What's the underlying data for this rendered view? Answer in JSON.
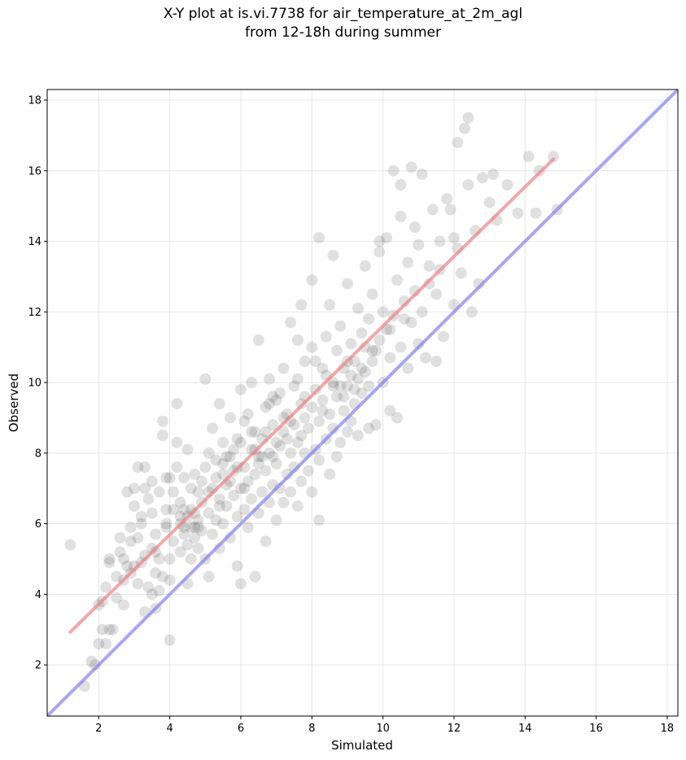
{
  "chart_data": {
    "type": "scatter",
    "title_lines": [
      "X-Y plot at is.vi.7738 for air_temperature_at_2m_agl",
      "from 12-18h during summer"
    ],
    "xlabel": "Simulated",
    "ylabel": "Observed",
    "xlim": [
      0.55,
      18.3
    ],
    "ylim": [
      0.55,
      18.3
    ],
    "xticks": [
      2,
      4,
      6,
      8,
      10,
      12,
      14,
      16,
      18
    ],
    "yticks": [
      2,
      4,
      6,
      8,
      10,
      12,
      14,
      16,
      18
    ],
    "grid": true,
    "point_color": "#555555",
    "point_opacity": 0.18,
    "series": [
      {
        "kind": "fit-line",
        "color": "#f08080",
        "x": [
          1.2,
          14.8
        ],
        "y": [
          2.93,
          16.33
        ]
      },
      {
        "kind": "identity-line",
        "color": "#8080f0",
        "x": [
          0.55,
          18.3
        ],
        "y": [
          0.55,
          18.3
        ]
      }
    ],
    "points": [
      [
        1.2,
        5.4
      ],
      [
        1.6,
        1.4
      ],
      [
        1.8,
        2.1
      ],
      [
        1.9,
        2.0
      ],
      [
        2.0,
        2.6
      ],
      [
        2.0,
        3.7
      ],
      [
        2.1,
        3.8
      ],
      [
        2.1,
        3.0
      ],
      [
        2.2,
        2.6
      ],
      [
        2.2,
        4.2
      ],
      [
        2.3,
        3.0
      ],
      [
        2.3,
        4.9
      ],
      [
        2.4,
        3.0
      ],
      [
        2.3,
        5.0
      ],
      [
        2.5,
        3.9
      ],
      [
        2.6,
        5.2
      ],
      [
        2.6,
        5.6
      ],
      [
        2.7,
        4.4
      ],
      [
        2.7,
        3.7
      ],
      [
        2.7,
        5.0
      ],
      [
        2.8,
        4.8
      ],
      [
        2.8,
        6.9
      ],
      [
        2.9,
        4.6
      ],
      [
        2.9,
        5.9
      ],
      [
        3.0,
        7.0
      ],
      [
        3.0,
        6.5
      ],
      [
        3.1,
        4.3
      ],
      [
        3.1,
        5.6
      ],
      [
        3.1,
        7.6
      ],
      [
        3.2,
        4.9
      ],
      [
        3.2,
        6.2
      ],
      [
        3.3,
        5.1
      ],
      [
        3.3,
        7.6
      ],
      [
        3.3,
        3.5
      ],
      [
        3.4,
        4.2
      ],
      [
        3.4,
        6.7
      ],
      [
        3.5,
        4.0
      ],
      [
        3.5,
        5.3
      ],
      [
        3.5,
        6.3
      ],
      [
        3.5,
        7.2
      ],
      [
        3.6,
        3.6
      ],
      [
        3.6,
        4.6
      ],
      [
        3.6,
        5.7
      ],
      [
        3.7,
        4.1
      ],
      [
        3.7,
        5.0
      ],
      [
        3.7,
        6.9
      ],
      [
        3.8,
        4.5
      ],
      [
        3.8,
        8.9
      ],
      [
        3.8,
        8.5
      ],
      [
        3.9,
        5.9
      ],
      [
        3.9,
        6.4
      ],
      [
        3.9,
        7.3
      ],
      [
        4.0,
        4.4
      ],
      [
        4.0,
        2.7
      ],
      [
        4.0,
        5.0
      ],
      [
        4.1,
        5.5
      ],
      [
        4.1,
        6.9
      ],
      [
        4.2,
        8.3
      ],
      [
        4.2,
        9.4
      ],
      [
        4.2,
        7.6
      ],
      [
        4.3,
        5.2
      ],
      [
        4.3,
        6.0
      ],
      [
        4.3,
        6.6
      ],
      [
        4.4,
        5.7
      ],
      [
        4.4,
        7.3
      ],
      [
        4.5,
        4.3
      ],
      [
        4.5,
        6.2
      ],
      [
        4.5,
        8.1
      ],
      [
        4.6,
        5.0
      ],
      [
        4.6,
        6.4
      ],
      [
        4.6,
        7.0
      ],
      [
        4.7,
        5.6
      ],
      [
        4.7,
        5.9
      ],
      [
        4.7,
        7.4
      ],
      [
        4.8,
        5.3
      ],
      [
        4.8,
        6.1
      ],
      [
        4.8,
        6.9
      ],
      [
        4.9,
        5.8
      ],
      [
        4.9,
        6.6
      ],
      [
        5.0,
        5.0
      ],
      [
        5.0,
        7.6
      ],
      [
        5.0,
        10.1
      ],
      [
        5.1,
        4.5
      ],
      [
        5.1,
        6.3
      ],
      [
        5.1,
        8.0
      ],
      [
        5.2,
        5.7
      ],
      [
        5.2,
        7.0
      ],
      [
        5.2,
        8.7
      ],
      [
        5.3,
        6.1
      ],
      [
        5.3,
        7.3
      ],
      [
        5.4,
        5.3
      ],
      [
        5.4,
        6.7
      ],
      [
        5.4,
        9.4
      ],
      [
        5.5,
        6.0
      ],
      [
        5.5,
        7.7
      ],
      [
        5.5,
        8.3
      ],
      [
        5.6,
        6.5
      ],
      [
        5.6,
        7.1
      ],
      [
        5.7,
        5.6
      ],
      [
        5.7,
        7.9
      ],
      [
        5.7,
        9.0
      ],
      [
        5.8,
        6.8
      ],
      [
        5.8,
        7.5
      ],
      [
        5.9,
        4.8
      ],
      [
        5.9,
        6.2
      ],
      [
        5.9,
        8.4
      ],
      [
        6.0,
        4.3
      ],
      [
        6.0,
        7.0
      ],
      [
        6.0,
        9.8
      ],
      [
        6.1,
        6.4
      ],
      [
        6.1,
        7.6
      ],
      [
        6.1,
        8.9
      ],
      [
        6.2,
        5.9
      ],
      [
        6.2,
        7.2
      ],
      [
        6.3,
        6.7
      ],
      [
        6.3,
        8.1
      ],
      [
        6.3,
        10.0
      ],
      [
        6.4,
        4.5
      ],
      [
        6.4,
        7.4
      ],
      [
        6.4,
        8.6
      ],
      [
        6.5,
        6.3
      ],
      [
        6.5,
        7.9
      ],
      [
        6.5,
        11.2
      ],
      [
        6.6,
        6.9
      ],
      [
        6.6,
        8.4
      ],
      [
        6.7,
        5.5
      ],
      [
        6.7,
        7.5
      ],
      [
        6.7,
        9.3
      ],
      [
        6.8,
        6.6
      ],
      [
        6.8,
        8.0
      ],
      [
        6.8,
        10.1
      ],
      [
        6.9,
        7.1
      ],
      [
        6.9,
        8.8
      ],
      [
        7.0,
        6.1
      ],
      [
        7.0,
        7.7
      ],
      [
        7.0,
        9.5
      ],
      [
        7.1,
        7.0
      ],
      [
        7.1,
        8.2
      ],
      [
        7.2,
        6.6
      ],
      [
        7.2,
        8.6
      ],
      [
        7.2,
        10.4
      ],
      [
        7.3,
        7.4
      ],
      [
        7.3,
        9.1
      ],
      [
        7.4,
        6.9
      ],
      [
        7.4,
        8.0
      ],
      [
        7.4,
        11.7
      ],
      [
        7.5,
        7.6
      ],
      [
        7.5,
        8.8
      ],
      [
        7.5,
        9.9
      ],
      [
        7.6,
        6.5
      ],
      [
        7.6,
        8.3
      ],
      [
        7.7,
        7.2
      ],
      [
        7.7,
        9.4
      ],
      [
        7.7,
        12.2
      ],
      [
        7.8,
        8.0
      ],
      [
        7.8,
        9.0
      ],
      [
        7.8,
        10.6
      ],
      [
        7.9,
        7.5
      ],
      [
        7.9,
        8.7
      ],
      [
        8.0,
        6.9
      ],
      [
        8.0,
        9.3
      ],
      [
        8.0,
        11.0
      ],
      [
        8.1,
        8.1
      ],
      [
        8.1,
        9.8
      ],
      [
        8.2,
        6.1
      ],
      [
        8.2,
        7.8
      ],
      [
        8.2,
        8.9
      ],
      [
        8.2,
        14.1
      ],
      [
        8.3,
        9.5
      ],
      [
        8.3,
        10.4
      ],
      [
        8.4,
        8.4
      ],
      [
        8.4,
        11.3
      ],
      [
        8.5,
        7.4
      ],
      [
        8.5,
        9.1
      ],
      [
        8.5,
        12.2
      ],
      [
        8.6,
        8.7
      ],
      [
        8.6,
        10.0
      ],
      [
        8.7,
        7.9
      ],
      [
        8.7,
        9.6
      ],
      [
        8.7,
        10.9
      ],
      [
        8.8,
        8.3
      ],
      [
        8.8,
        11.6
      ],
      [
        8.9,
        9.2
      ],
      [
        8.9,
        10.4
      ],
      [
        9.0,
        8.6
      ],
      [
        9.0,
        9.9
      ],
      [
        9.0,
        12.8
      ],
      [
        9.1,
        8.9
      ],
      [
        9.1,
        11.1
      ],
      [
        9.2,
        9.4
      ],
      [
        9.2,
        10.6
      ],
      [
        9.3,
        8.5
      ],
      [
        9.3,
        10.1
      ],
      [
        9.3,
        12.1
      ],
      [
        9.4,
        9.7
      ],
      [
        9.4,
        11.4
      ],
      [
        9.5,
        10.3
      ],
      [
        9.5,
        13.3
      ],
      [
        9.6,
        8.7
      ],
      [
        9.6,
        9.9
      ],
      [
        9.6,
        11.8
      ],
      [
        9.7,
        10.6
      ],
      [
        9.7,
        12.5
      ],
      [
        9.8,
        8.8
      ],
      [
        9.8,
        10.9
      ],
      [
        9.9,
        11.2
      ],
      [
        9.9,
        13.7
      ],
      [
        10.0,
        10.0
      ],
      [
        10.0,
        12.0
      ],
      [
        10.1,
        11.5
      ],
      [
        10.1,
        14.1
      ],
      [
        10.2,
        9.2
      ],
      [
        10.2,
        10.7
      ],
      [
        10.3,
        11.9
      ],
      [
        10.3,
        16.0
      ],
      [
        10.4,
        9.0
      ],
      [
        10.4,
        12.9
      ],
      [
        10.5,
        11.0
      ],
      [
        10.5,
        14.7
      ],
      [
        10.6,
        12.3
      ],
      [
        10.7,
        10.4
      ],
      [
        10.7,
        13.4
      ],
      [
        10.8,
        11.7
      ],
      [
        10.8,
        16.1
      ],
      [
        10.9,
        12.6
      ],
      [
        10.9,
        14.4
      ],
      [
        11.0,
        11.1
      ],
      [
        11.0,
        13.9
      ],
      [
        11.1,
        15.9
      ],
      [
        11.1,
        12.0
      ],
      [
        11.2,
        10.7
      ],
      [
        11.3,
        13.3
      ],
      [
        11.4,
        14.9
      ],
      [
        11.5,
        10.6
      ],
      [
        11.5,
        12.5
      ],
      [
        11.6,
        14.0
      ],
      [
        11.7,
        11.3
      ],
      [
        11.8,
        15.2
      ],
      [
        12.0,
        12.2
      ],
      [
        12.0,
        14.1
      ],
      [
        12.1,
        16.8
      ],
      [
        12.2,
        13.1
      ],
      [
        12.3,
        17.2
      ],
      [
        12.4,
        15.6
      ],
      [
        12.5,
        12.0
      ],
      [
        12.6,
        14.3
      ],
      [
        12.7,
        12.8
      ],
      [
        12.8,
        15.8
      ],
      [
        13.0,
        15.1
      ],
      [
        13.2,
        14.6
      ],
      [
        13.5,
        15.6
      ],
      [
        13.8,
        14.8
      ],
      [
        14.1,
        16.4
      ],
      [
        14.3,
        14.8
      ],
      [
        14.4,
        16.0
      ],
      [
        14.8,
        16.4
      ],
      [
        14.9,
        14.9
      ],
      [
        12.4,
        17.5
      ],
      [
        11.9,
        14.9
      ],
      [
        13.1,
        15.9
      ],
      [
        9.9,
        14.0
      ],
      [
        10.5,
        15.6
      ],
      [
        8.6,
        13.6
      ],
      [
        8.0,
        12.9
      ],
      [
        7.6,
        11.2
      ],
      [
        6.9,
        9.6
      ],
      [
        6.2,
        9.1
      ],
      [
        5.8,
        8.1
      ],
      [
        5.3,
        7.8
      ],
      [
        4.9,
        7.2
      ],
      [
        4.4,
        6.4
      ],
      [
        4.6,
        5.9
      ],
      [
        4.5,
        5.4
      ],
      [
        4.3,
        6.2
      ],
      [
        4.7,
        6.3
      ],
      [
        4.8,
        5.9
      ],
      [
        4.4,
        5.9
      ],
      [
        6.7,
        8.6
      ],
      [
        6.6,
        7.9
      ],
      [
        6.4,
        8.1
      ],
      [
        6.9,
        7.9
      ],
      [
        7.2,
        9.0
      ],
      [
        7.3,
        8.4
      ],
      [
        7.8,
        9.6
      ],
      [
        8.1,
        10.6
      ],
      [
        8.6,
        9.9
      ],
      [
        8.9,
        9.6
      ],
      [
        9.1,
        10.2
      ],
      [
        9.2,
        9.8
      ],
      [
        9.7,
        10.9
      ],
      [
        9.4,
        10.4
      ],
      [
        8.4,
        10.2
      ],
      [
        7.6,
        10.1
      ],
      [
        7.1,
        9.7
      ],
      [
        6.8,
        9.4
      ],
      [
        6.3,
        8.6
      ],
      [
        6.0,
        8.3
      ],
      [
        5.7,
        7.2
      ],
      [
        5.5,
        7.4
      ],
      [
        5.1,
        6.9
      ],
      [
        5.4,
        6.5
      ],
      [
        5.6,
        7.9
      ],
      [
        5.9,
        7.6
      ],
      [
        6.1,
        7.0
      ],
      [
        6.5,
        7.7
      ],
      [
        7.0,
        8.3
      ],
      [
        7.4,
        8.9
      ],
      [
        7.7,
        8.5
      ],
      [
        8.3,
        9.2
      ],
      [
        8.8,
        9.9
      ],
      [
        9.0,
        10.6
      ],
      [
        9.5,
        11.0
      ],
      [
        10.2,
        11.5
      ],
      [
        10.6,
        11.8
      ],
      [
        11.3,
        12.8
      ],
      [
        11.6,
        13.2
      ],
      [
        12.1,
        13.8
      ],
      [
        3.0,
        4.8
      ],
      [
        3.6,
        5.2
      ],
      [
        3.9,
        6.0
      ],
      [
        2.5,
        4.5
      ],
      [
        3.3,
        7.0
      ],
      [
        4.0,
        7.3
      ],
      [
        4.1,
        6.4
      ],
      [
        3.2,
        6.0
      ],
      [
        2.9,
        5.5
      ]
    ]
  }
}
